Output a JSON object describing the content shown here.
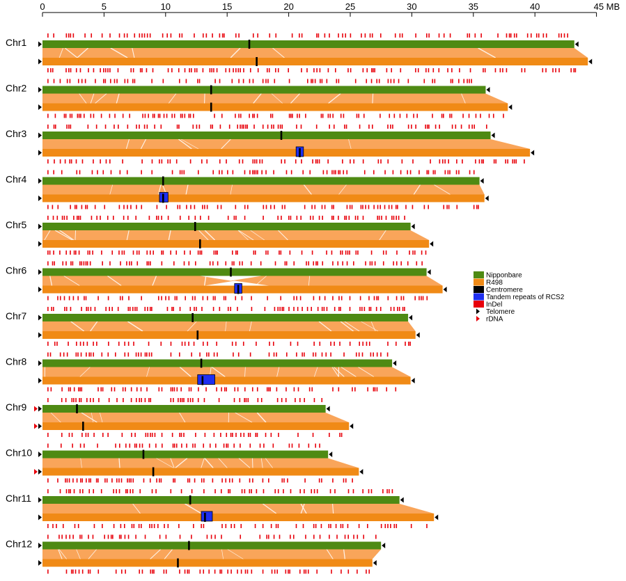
{
  "axis": {
    "unit": "MB",
    "min": 0,
    "max": 45,
    "ticks": [
      {
        "value": 0,
        "label": "0"
      },
      {
        "value": 5,
        "label": "5"
      },
      {
        "value": 10,
        "label": "10"
      },
      {
        "value": 15,
        "label": "15"
      },
      {
        "value": 20,
        "label": "20"
      },
      {
        "value": 25,
        "label": "25"
      },
      {
        "value": 30,
        "label": "30"
      },
      {
        "value": 35,
        "label": "35"
      },
      {
        "value": 40,
        "label": "40"
      },
      {
        "value": 45,
        "label": "45 MB"
      }
    ]
  },
  "colors": {
    "nipponbare": "#4e8a13",
    "r498": "#f08a16",
    "synteny": "#f9a55a",
    "centromere": "#000000",
    "tandem": "#1f2ff0",
    "indel": "#e8000b",
    "telomere": "#000000",
    "rdna": "#e8000b"
  },
  "legend": [
    {
      "key": "nipponbare",
      "label": "Nipponbare",
      "symbol": "bar"
    },
    {
      "key": "r498",
      "label": "R498",
      "symbol": "bar"
    },
    {
      "key": "centromere",
      "label": "Centromere",
      "symbol": "bar"
    },
    {
      "key": "tandem",
      "label": "Tandem repeats of RCS2",
      "symbol": "bar"
    },
    {
      "key": "indel",
      "label": "InDel",
      "symbol": "bar"
    },
    {
      "key": "telomere",
      "label": "Telomere",
      "symbol": "triangle"
    },
    {
      "key": "rdna",
      "label": "rDNA",
      "symbol": "triangle"
    }
  ],
  "chromosomes": [
    {
      "name": "Chr1",
      "nip_len": 43.2,
      "r498_len": 44.3,
      "nip_cen": 16.8,
      "r498_cen": 17.4,
      "r498_tandem": null,
      "rdna": false
    },
    {
      "name": "Chr2",
      "nip_len": 36.0,
      "r498_len": 37.8,
      "nip_cen": 13.7,
      "r498_cen": 13.7,
      "r498_tandem": null,
      "rdna": false
    },
    {
      "name": "Chr3",
      "nip_len": 36.4,
      "r498_len": 39.6,
      "nip_cen": 19.4,
      "r498_cen": 20.9,
      "r498_tandem": [
        20.6,
        21.2
      ],
      "rdna": false
    },
    {
      "name": "Chr4",
      "nip_len": 35.5,
      "r498_len": 35.9,
      "nip_cen": 9.8,
      "r498_cen": 9.8,
      "r498_tandem": [
        9.5,
        10.2
      ],
      "rdna": false
    },
    {
      "name": "Chr5",
      "nip_len": 29.9,
      "r498_len": 31.4,
      "nip_cen": 12.4,
      "r498_cen": 12.8,
      "r498_tandem": null,
      "rdna": false
    },
    {
      "name": "Chr6",
      "nip_len": 31.2,
      "r498_len": 32.5,
      "nip_cen": 15.3,
      "r498_cen": 15.9,
      "r498_tandem": [
        15.6,
        16.2
      ],
      "rdna": false
    },
    {
      "name": "Chr7",
      "nip_len": 29.7,
      "r498_len": 30.3,
      "nip_cen": 12.2,
      "r498_cen": 12.6,
      "r498_tandem": null,
      "rdna": false
    },
    {
      "name": "Chr8",
      "nip_len": 28.4,
      "r498_len": 29.9,
      "nip_cen": 12.9,
      "r498_cen": 13.0,
      "r498_tandem": [
        12.6,
        14.0
      ],
      "rdna": false
    },
    {
      "name": "Chr9",
      "nip_len": 23.0,
      "r498_len": 24.9,
      "nip_cen": 2.8,
      "r498_cen": 3.3,
      "r498_tandem": null,
      "rdna": true
    },
    {
      "name": "Chr10",
      "nip_len": 23.2,
      "r498_len": 25.7,
      "nip_cen": 8.2,
      "r498_cen": 9.0,
      "r498_tandem": null,
      "rdna": true
    },
    {
      "name": "Chr11",
      "nip_len": 29.0,
      "r498_len": 31.8,
      "nip_cen": 12.0,
      "r498_cen": 13.2,
      "r498_tandem": [
        12.9,
        13.8
      ],
      "rdna": false
    },
    {
      "name": "Chr12",
      "nip_len": 27.5,
      "r498_len": 26.8,
      "nip_cen": 11.9,
      "r498_cen": 11.0,
      "r498_tandem": null,
      "rdna": false
    }
  ]
}
